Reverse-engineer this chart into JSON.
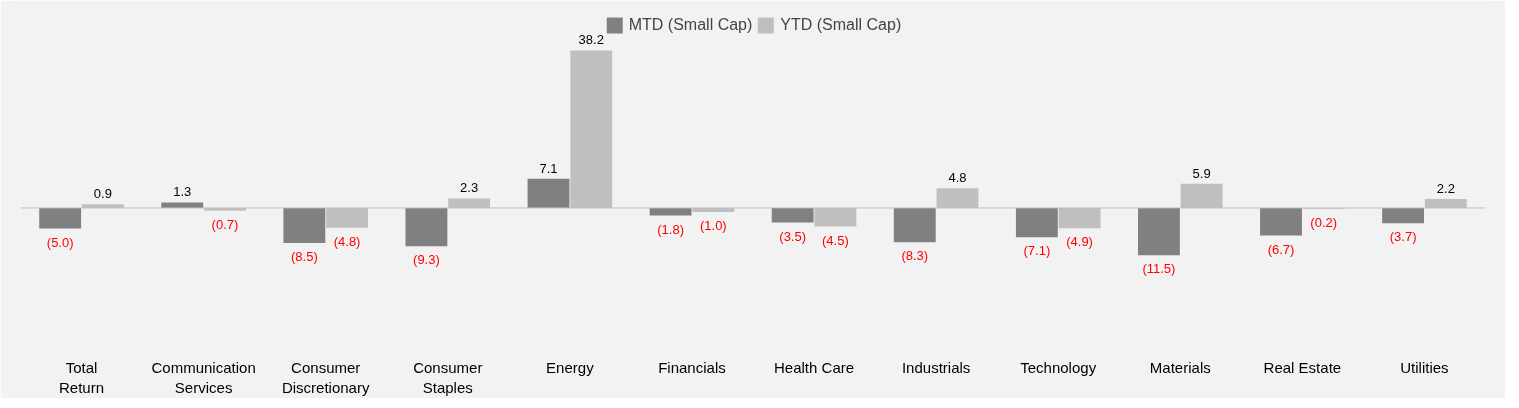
{
  "chart_data": {
    "type": "bar",
    "categories": [
      "Total Return",
      "Communication Services",
      "Consumer Discretionary",
      "Consumer Staples",
      "Energy",
      "Financials",
      "Health Care",
      "Industrials",
      "Technology",
      "Materials",
      "Real Estate",
      "Utilities"
    ],
    "series": [
      {
        "name": "MTD (Small Cap)",
        "color": "#808080",
        "values": [
          -5.0,
          1.3,
          -8.5,
          -9.3,
          7.1,
          -1.8,
          -3.5,
          -8.3,
          -7.1,
          -11.5,
          -6.7,
          -3.7
        ],
        "value_labels": [
          "(5.0)",
          "1.3",
          "(8.5)",
          "(9.3)",
          "7.1",
          "(1.8)",
          "(3.5)",
          "(8.3)",
          "(7.1)",
          "(11.5)",
          "(6.7)",
          "(3.7)"
        ]
      },
      {
        "name": "YTD (Small Cap)",
        "color": "#bfbfbf",
        "values": [
          0.9,
          -0.7,
          -4.8,
          2.3,
          38.2,
          -1.0,
          -4.5,
          4.8,
          -4.9,
          5.9,
          -0.2,
          2.2
        ],
        "value_labels": [
          "0.9",
          "(0.7)",
          "(4.8)",
          "2.3",
          "38.2",
          "(1.0)",
          "(4.5)",
          "4.8",
          "(4.9)",
          "5.9",
          "(0.2)",
          "2.2"
        ]
      }
    ],
    "legend": "top",
    "grid": false
  }
}
